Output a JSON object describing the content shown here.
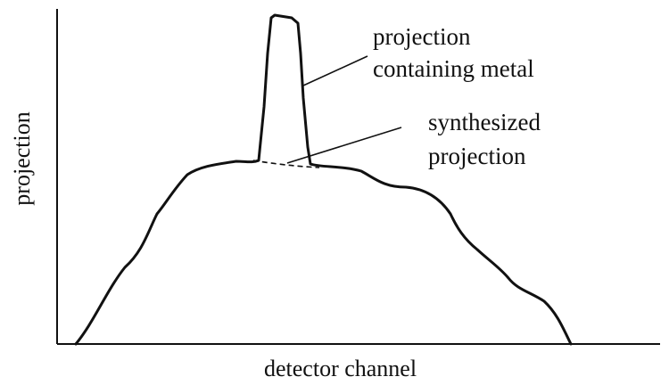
{
  "diagram": {
    "type": "projection-profile-diagram",
    "axis_labels": {
      "x": "detector channel",
      "y": "projection"
    },
    "annotations": {
      "metal": {
        "line1": "projection",
        "line2": "containing metal"
      },
      "synthesized": {
        "line1": "synthesized",
        "line2": "projection"
      }
    },
    "curves": [
      {
        "name": "projection containing metal",
        "style": "solid"
      },
      {
        "name": "synthesized projection",
        "style": "dashed"
      }
    ],
    "colors": {
      "line": "#111111",
      "background": "#ffffff"
    }
  }
}
